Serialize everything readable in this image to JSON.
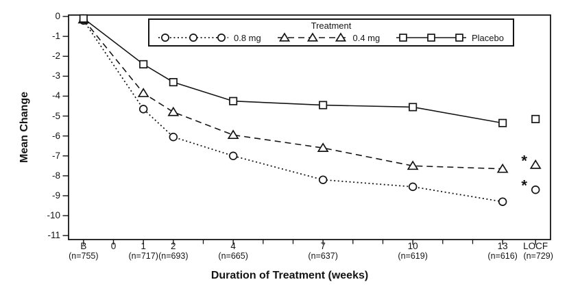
{
  "figure": {
    "background": "#ffffff",
    "ink_color": "#141414"
  },
  "chart_data": {
    "type": "line",
    "title": "",
    "xlabel": "Duration of Treatment (weeks)",
    "ylabel": "Mean Change",
    "legend": {
      "title": "Treatment",
      "position": "top-center-inside"
    },
    "xlim": [
      -1.5,
      14.6
    ],
    "ylim": [
      -11.2,
      0.07
    ],
    "grid": false,
    "x_axis": {
      "major_ticks": [
        {
          "pos": -1,
          "label": "B",
          "n": "(n=755)"
        },
        {
          "pos": 0,
          "label": "0",
          "n": ""
        },
        {
          "pos": 1,
          "label": "1",
          "n": "(n=717)"
        },
        {
          "pos": 2,
          "label": "2",
          "n": "(n=693)"
        },
        {
          "pos": 4,
          "label": "4",
          "n": "(n=665)"
        },
        {
          "pos": 7,
          "label": "7",
          "n": "(n=637)"
        },
        {
          "pos": 10,
          "label": "10",
          "n": "(n=619)"
        },
        {
          "pos": 13,
          "label": "13",
          "n": "(n=616)"
        },
        {
          "pos": 14.1,
          "label": "LOCF",
          "n": "(n=729)"
        }
      ],
      "minor_ticks": [
        3,
        5,
        6,
        8,
        9,
        11,
        12
      ]
    },
    "y_axis": {
      "ticks": [
        {
          "pos": 0,
          "label": "0"
        },
        {
          "pos": -1,
          "label": "-1"
        },
        {
          "pos": -2,
          "label": "-2"
        },
        {
          "pos": -3,
          "label": "-3"
        },
        {
          "pos": -4,
          "label": "-4"
        },
        {
          "pos": -5,
          "label": "-5"
        },
        {
          "pos": -6,
          "label": "-6"
        },
        {
          "pos": -7,
          "label": "-7"
        },
        {
          "pos": -8,
          "label": "-8"
        },
        {
          "pos": -9,
          "label": "-9"
        },
        {
          "pos": -10,
          "label": "-10"
        },
        {
          "pos": -11,
          "label": "-11"
        }
      ]
    },
    "series": [
      {
        "name": "0.8 mg",
        "marker": "circle",
        "line": "dotted",
        "x": [
          -1,
          1,
          2,
          4,
          7,
          10,
          13
        ],
        "y": [
          -0.2,
          -4.65,
          -6.05,
          -7.0,
          -8.2,
          -8.55,
          -9.3
        ],
        "locf": {
          "x": 14.1,
          "y": -8.7,
          "starred": true
        }
      },
      {
        "name": "0.4 mg",
        "marker": "triangle",
        "line": "dashed",
        "x": [
          -1,
          1,
          2,
          4,
          7,
          10,
          13
        ],
        "y": [
          -0.15,
          -3.85,
          -4.8,
          -5.95,
          -6.6,
          -7.5,
          -7.65
        ],
        "locf": {
          "x": 14.1,
          "y": -7.45,
          "starred": true
        }
      },
      {
        "name": "Placebo",
        "marker": "square",
        "line": "solid",
        "x": [
          -1,
          1,
          2,
          4,
          7,
          10,
          13
        ],
        "y": [
          -0.1,
          -2.4,
          -3.3,
          -4.25,
          -4.45,
          -4.55,
          -5.35
        ],
        "locf": {
          "x": 14.1,
          "y": -5.15,
          "starred": false
        }
      }
    ],
    "annotations": [
      {
        "text": "*",
        "meaning": "significance-marker",
        "attached_to": "0.4 mg LOCF"
      },
      {
        "text": "*",
        "meaning": "significance-marker",
        "attached_to": "0.8 mg LOCF"
      }
    ]
  }
}
